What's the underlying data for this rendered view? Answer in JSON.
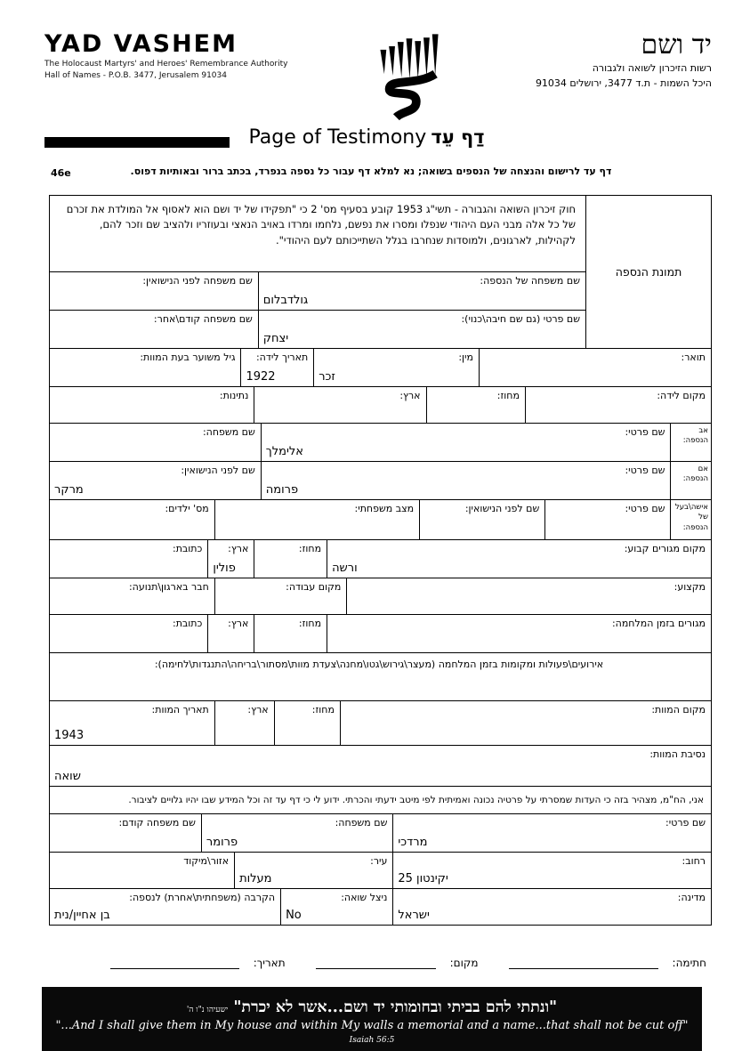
{
  "header": {
    "en_title": "YAD VASHEM",
    "en_line1": "The Holocaust Martyrs' and Heroes' Remembrance Authority",
    "en_line2": "Hall of Names - P.O.B. 3477, Jerusalem 91034",
    "he_title": "יד ושם",
    "he_line1": "רשות הזיכרון לשואה ולגבורה",
    "he_line2": "היכל השמות - ת.ד 3477, ירושלים 91034",
    "logo": "yad-vashem-menorah-logo"
  },
  "title": {
    "en": "Page of Testimony",
    "he": "דַף עֵד"
  },
  "form_code": "46e",
  "instruction": "דף עד לרישום והנצחה של הנספים בשואה; נא למלא דף עבור כל נספה בנפרד, בכתב ברור ובאותיות דפוס.",
  "intro_paragraph": "חוק זיכרון השואה והגבורה - תשי\"ג 1953 קובע בסעיף מס' 2 כי \"תפקידו של יד ושם הוא לאסוף אל המולדת את זכרם של כל אלה מבני העם היהודי שנפלו ומסרו את נפשם, נלחמו ומרדו באויב הנאצי ובעוזריו ולהציב שם וזכר להם, לקהילות, לארגונים, ולמוסדות שנחרבו בגלל השתייכותם לעם היהודי\".",
  "photo_label": "תמונת הנספה",
  "form": {
    "sec1_rows": [
      {
        "h": 42,
        "cells": [
          {
            "w": "61%",
            "label": "שם משפחה של הנספה:",
            "value": "גולדבלום",
            "name": "victim-family-name"
          },
          {
            "w": "39%",
            "label": "שם משפחה לפני הנישואין:",
            "name": "victim-maiden-name"
          }
        ]
      },
      {
        "h": 42,
        "cells": [
          {
            "w": "61%",
            "label": "שם פרטי (גם שם חיבה\\כנוי):",
            "value": "יצחק",
            "name": "victim-first-name"
          },
          {
            "w": "39%",
            "label": "שם משפחה קודם\\אחר:",
            "name": "victim-previous-family-name"
          }
        ]
      }
    ],
    "rows": [
      {
        "h": 42,
        "cells": [
          {
            "w": "35%",
            "label": "תואר:",
            "name": "title"
          },
          {
            "w": "25%",
            "label": "מין:",
            "value": "זכר",
            "name": "sex"
          },
          {
            "w": "11%",
            "label": "תאריך לידה:",
            "value": "1922",
            "name": "birth-date"
          },
          {
            "w": "29%",
            "label": "גיל משוער בעת המוות:",
            "name": "estimated-age-at-death"
          }
        ]
      },
      {
        "h": 40,
        "cells": [
          {
            "w": "28%",
            "label": "מקום לידה:",
            "name": "birth-place"
          },
          {
            "w": "15%",
            "label": "מחוז:",
            "name": "birth-district"
          },
          {
            "w": "26%",
            "label": "ארץ:",
            "name": "birth-country"
          },
          {
            "w": "31%",
            "label": "נתינות:",
            "name": "citizenship"
          }
        ]
      },
      {
        "h": 42,
        "cells": [
          {
            "w": "6%",
            "side": "אב הנספה:",
            "name": "father-of-victim"
          },
          {
            "w": "62%",
            "label": "שם פרטי:",
            "value": "אלימלך",
            "name": "father-first-name"
          },
          {
            "w": "32%",
            "label": "שם משפחה:",
            "name": "father-family-name"
          }
        ]
      },
      {
        "h": 42,
        "cells": [
          {
            "w": "6%",
            "side": "אם הנספה:",
            "name": "mother-of-victim"
          },
          {
            "w": "62%",
            "label": "שם פרטי:",
            "value": "פרומה",
            "name": "mother-first-name"
          },
          {
            "w": "32%",
            "label": "שם לפני הנישואין:",
            "value": "מרקר",
            "name": "mother-maiden-name"
          }
        ]
      },
      {
        "h": 44,
        "cells": [
          {
            "w": "6%",
            "side": "אישה\\בעל של הנספה:",
            "name": "spouse-of-victim"
          },
          {
            "w": "19%",
            "label": "שם פרטי:",
            "name": "spouse-first-name"
          },
          {
            "w": "19%",
            "label": "שם לפני הנישואין:",
            "name": "spouse-maiden-name"
          },
          {
            "w": "31%",
            "label": "מצב משפחתי:",
            "name": "marital-status"
          },
          {
            "w": "25%",
            "label": "מס' ילדים:",
            "name": "number-of-children"
          }
        ]
      },
      {
        "h": 42,
        "cells": [
          {
            "w": "58%",
            "label": "מקום מגורים קבוע:",
            "value": "ורשה",
            "name": "permanent-residence"
          },
          {
            "w": "11%",
            "label": "מחוז:",
            "name": "residence-district"
          },
          {
            "w": "7%",
            "label": "ארץ:",
            "value": "פולין",
            "name": "residence-country"
          },
          {
            "w": "24%",
            "label": "כתובת:",
            "name": "residence-address"
          }
        ]
      },
      {
        "h": 40,
        "cells": [
          {
            "w": "55%",
            "label": "מקצוע:",
            "name": "profession"
          },
          {
            "w": "20%",
            "label": "מקום עבודה:",
            "name": "workplace"
          },
          {
            "w": "25%",
            "label": "חבר בארגון\\תנועה:",
            "name": "organization-membership"
          }
        ]
      },
      {
        "h": 42,
        "cells": [
          {
            "w": "58%",
            "label": "מגורים בזמן המלחמה:",
            "name": "wartime-residence"
          },
          {
            "w": "11%",
            "label": "מחוז:",
            "name": "wartime-district"
          },
          {
            "w": "7%",
            "label": "ארץ:",
            "name": "wartime-country"
          },
          {
            "w": "24%",
            "label": "כתובת:",
            "name": "wartime-address"
          }
        ]
      },
      {
        "h": 53,
        "cells": [
          {
            "w": "100%",
            "center": true,
            "label": "אירועים\\פעולות ומקומות בזמן המלחמה (מעצר\\גירוש\\גטו\\מחנה\\צעדת מוות\\מסתור\\בריחה\\התנגדות\\לחימה):",
            "name": "wartime-events"
          }
        ]
      },
      {
        "h": 49,
        "cells": [
          {
            "w": "56%",
            "label": "מקום המוות:",
            "name": "death-place"
          },
          {
            "w": "10%",
            "label": "מחוז:",
            "name": "death-district"
          },
          {
            "w": "9%",
            "label": "ארץ:",
            "name": "death-country"
          },
          {
            "w": "25%",
            "label": "תאריך המוות:",
            "value": "1943",
            "name": "death-date"
          }
        ]
      },
      {
        "h": 45,
        "cells": [
          {
            "w": "100%",
            "label": "נסיבת המוות:",
            "value": "שואה",
            "name": "death-circumstances"
          }
        ]
      },
      {
        "h": 30,
        "cells": [
          {
            "w": "100%",
            "decl": true,
            "label": "אני, הח\"מ, מצהיר בזה כי העדות שמסרתי על פרטיה נכונה ואמיתית לפי מיטב ידעתי והכרתי. ידוע לי כי דף עד זה וכל המידע שבו יהיו גלויים לציבור.",
            "name": "declaration"
          }
        ]
      },
      {
        "h": 42,
        "cells": [
          {
            "w": "48%",
            "label": "שם פרטי:",
            "value": "מרדכי",
            "name": "submitter-first-name"
          },
          {
            "w": "29%",
            "label": "שם משפחה:",
            "value": "פרומר",
            "name": "submitter-family-name"
          },
          {
            "w": "23%",
            "label": "שם משפחה קודם:",
            "name": "submitter-previous-family-name"
          }
        ]
      },
      {
        "h": 40,
        "cells": [
          {
            "w": "48%",
            "label": "רחוב:",
            "value": "יקינטון 25",
            "name": "submitter-street"
          },
          {
            "w": "24%",
            "label": "עיר:",
            "value": "מעלות",
            "name": "submitter-city"
          },
          {
            "w": "28%",
            "label": "אזור\\מיקוד",
            "name": "submitter-zip"
          }
        ]
      },
      {
        "h": 40,
        "cells": [
          {
            "w": "48%",
            "label": "מדינה:",
            "value": "ישראל",
            "name": "submitter-country"
          },
          {
            "w": "17%",
            "label": "ניצל שואה:",
            "value": "No",
            "name": "holocaust-survivor"
          },
          {
            "w": "35%",
            "label": "הקרבה (משפחתית\\אחרת) לנספה:",
            "value": "בן אחיין/נית",
            "name": "relationship-to-victim"
          }
        ]
      }
    ]
  },
  "signature": {
    "signature_label": "חתימה:",
    "place_label": "מקום:",
    "date_label": "תאריך:"
  },
  "banner": {
    "hebrew": "\"ונתתי להם בביתי ובחומותי יד ושם...אשר לא יכרת\"",
    "hebrew_ref": "ישעיהו נ\"ו ה'",
    "english": "\"...And I shall give them in My house and within My walls a memorial and a name...that shall not be cut off\"",
    "english_ref": "Isaiah 56:5"
  }
}
